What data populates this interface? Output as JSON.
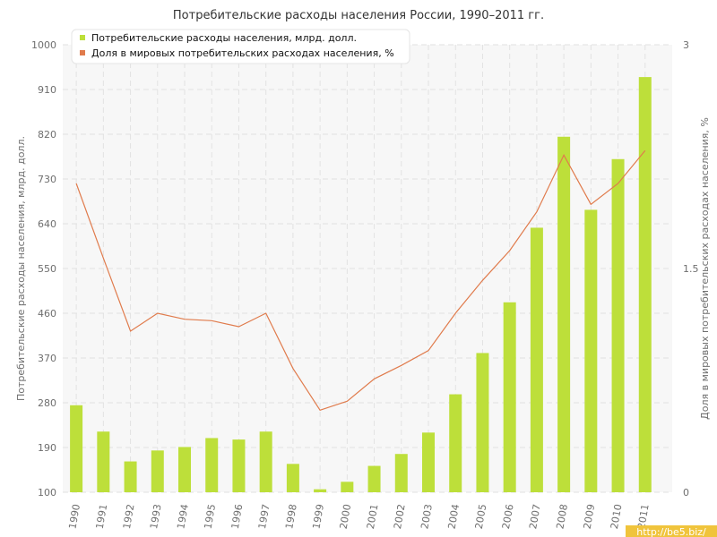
{
  "chart_data": {
    "type": "bar",
    "title": "Потребительские расходы населения России, 1990–2011 гг.",
    "categories": [
      "1990",
      "1991",
      "1992",
      "1993",
      "1994",
      "1995",
      "1996",
      "1997",
      "1998",
      "1999",
      "2000",
      "2001",
      "2002",
      "2003",
      "2004",
      "2005",
      "2006",
      "2007",
      "2008",
      "2009",
      "2010",
      "2011"
    ],
    "series": [
      {
        "name": "Потребительские расходы населения, млрд. долл.",
        "type": "bar",
        "axis": "left",
        "color": "#bddf3a",
        "values": [
          275,
          222,
          162,
          184,
          191,
          209,
          206,
          222,
          157,
          106,
          121,
          153,
          177,
          220,
          297,
          380,
          482,
          632,
          815,
          668,
          770,
          935
        ]
      },
      {
        "name": "Доля в мировых потребительских расходах населения, %",
        "type": "line",
        "axis": "right",
        "color": "#e07b4c",
        "values": [
          2.07,
          1.57,
          1.08,
          1.2,
          1.16,
          1.15,
          1.11,
          1.2,
          0.83,
          0.55,
          0.61,
          0.76,
          0.85,
          0.95,
          1.2,
          1.42,
          1.62,
          1.88,
          2.26,
          1.93,
          2.07,
          2.29
        ]
      }
    ],
    "ylabel": "Потребительские расходы населения, млрд. долл.",
    "ylabel_right": "Доля в мировых потребительских расходах населения, %",
    "ylim": [
      100,
      1000
    ],
    "yticks": [
      "100",
      "190",
      "280",
      "370",
      "460",
      "550",
      "640",
      "730",
      "820",
      "910",
      "1000"
    ],
    "ylim_right": [
      0,
      3
    ],
    "yticks_right": [
      "0",
      "1.5",
      "3"
    ],
    "grid": true,
    "legend_position": "top-left"
  },
  "watermark": "http://be5.biz/",
  "colors": {
    "plot_background": "#f7f7f7",
    "grid": "#e2e2e2",
    "watermark_background": "#f0c43c"
  }
}
